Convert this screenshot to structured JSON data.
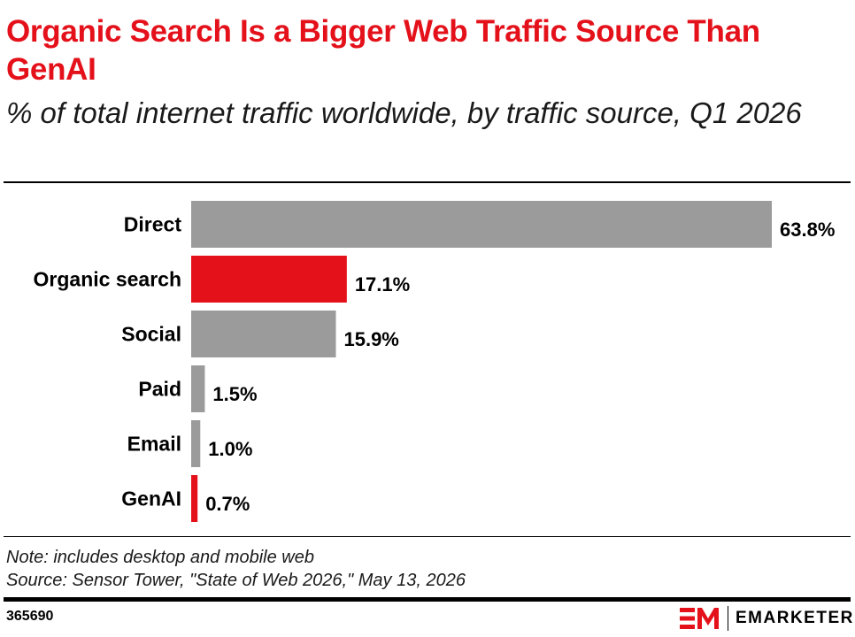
{
  "header": {
    "title": "Organic Search Is a Bigger Web Traffic Source Than GenAI",
    "subtitle": "% of total internet traffic worldwide, by traffic source, Q1 2026"
  },
  "footer": {
    "note": "Note: includes desktop and mobile web",
    "source": "Source: Sensor Tower, \"State of Web 2026,\" May 13, 2026",
    "chart_id": "365690",
    "brand": "EMARKETER"
  },
  "colors": {
    "accent": "#e4111b",
    "bar_default": "#9b9b9b",
    "bar_highlight": "#e4111b"
  },
  "chart_data": {
    "type": "bar",
    "orientation": "horizontal",
    "title": "Organic Search Is a Bigger Web Traffic Source Than GenAI",
    "subtitle": "% of total internet traffic worldwide, by traffic source, Q1 2026",
    "categories": [
      "Direct",
      "Organic search",
      "Social",
      "Paid",
      "Email",
      "GenAI"
    ],
    "values": [
      63.8,
      17.1,
      15.9,
      1.5,
      1.0,
      0.7
    ],
    "value_labels": [
      "63.8%",
      "17.1%",
      "15.9%",
      "1.5%",
      "1.0%",
      "0.7%"
    ],
    "highlight": [
      "Organic search",
      "GenAI"
    ],
    "xlim": [
      0,
      63.8
    ],
    "grid": false,
    "legend": "none"
  }
}
